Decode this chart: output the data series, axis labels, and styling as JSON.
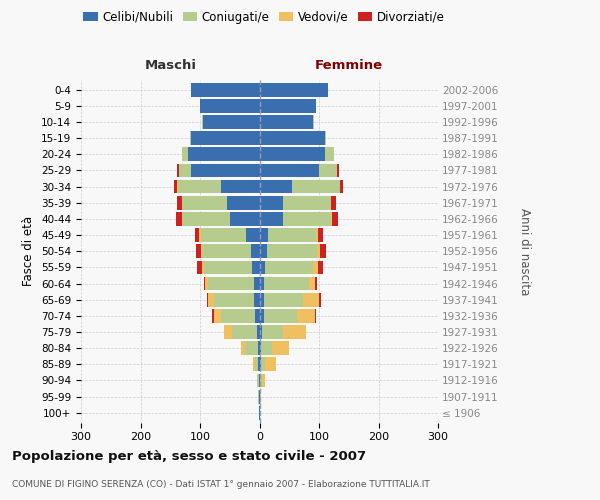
{
  "age_groups": [
    "100+",
    "95-99",
    "90-94",
    "85-89",
    "80-84",
    "75-79",
    "70-74",
    "65-69",
    "60-64",
    "55-59",
    "50-54",
    "45-49",
    "40-44",
    "35-39",
    "30-34",
    "25-29",
    "20-24",
    "15-19",
    "10-14",
    "5-9",
    "0-4"
  ],
  "birth_years": [
    "≤ 1906",
    "1907-1911",
    "1912-1916",
    "1917-1921",
    "1922-1926",
    "1927-1931",
    "1932-1936",
    "1937-1941",
    "1942-1946",
    "1947-1951",
    "1952-1956",
    "1957-1961",
    "1962-1966",
    "1967-1971",
    "1972-1976",
    "1977-1981",
    "1982-1986",
    "1987-1991",
    "1992-1996",
    "1997-2001",
    "2002-2006"
  ],
  "males_celibi": [
    1,
    1,
    1,
    2,
    3,
    5,
    8,
    10,
    10,
    12,
    15,
    22,
    50,
    55,
    65,
    115,
    120,
    115,
    95,
    100,
    115
  ],
  "males_coniugati": [
    0,
    1,
    3,
    6,
    22,
    42,
    57,
    67,
    77,
    82,
    82,
    77,
    80,
    75,
    72,
    20,
    10,
    1,
    1,
    0,
    0
  ],
  "males_vedovi": [
    0,
    0,
    1,
    3,
    6,
    12,
    12,
    10,
    5,
    3,
    2,
    2,
    1,
    1,
    1,
    1,
    0,
    0,
    0,
    0,
    0
  ],
  "males_divorziati": [
    0,
    0,
    0,
    0,
    0,
    0,
    2,
    2,
    2,
    8,
    8,
    8,
    10,
    8,
    5,
    2,
    1,
    0,
    0,
    0,
    0
  ],
  "females_nubili": [
    1,
    0,
    1,
    2,
    3,
    5,
    8,
    8,
    8,
    10,
    12,
    15,
    40,
    40,
    55,
    100,
    110,
    110,
    90,
    95,
    115
  ],
  "females_coniugate": [
    0,
    1,
    4,
    7,
    18,
    35,
    55,
    65,
    75,
    80,
    85,
    80,
    80,
    80,
    80,
    30,
    15,
    2,
    2,
    0,
    0
  ],
  "females_vedove": [
    0,
    1,
    5,
    18,
    28,
    38,
    30,
    27,
    10,
    8,
    5,
    3,
    2,
    1,
    1,
    1,
    0,
    0,
    0,
    0,
    0
  ],
  "females_divorziate": [
    0,
    0,
    0,
    0,
    0,
    0,
    2,
    3,
    3,
    8,
    10,
    8,
    10,
    8,
    5,
    2,
    1,
    0,
    0,
    0,
    0
  ],
  "colors_celibi": "#3a6faf",
  "colors_coniugati": "#b5cc8e",
  "colors_vedovi": "#f0c060",
  "colors_divorziati": "#cc2222",
  "xlim": 300,
  "title": "Popolazione per età, sesso e stato civile - 2007",
  "subtitle": "COMUNE DI FIGINO SERENZA (CO) - Dati ISTAT 1° gennaio 2007 - Elaborazione TUTTITALIA.IT",
  "ylabel_left": "Fasce di età",
  "ylabel_right": "Anni di nascita",
  "label_maschi": "Maschi",
  "label_femmine": "Femmine",
  "legend_labels": [
    "Celibi/Nubili",
    "Coniugati/e",
    "Vedovi/e",
    "Divorziati/e"
  ],
  "bg_color": "#f8f8f8",
  "grid_color": "#cccccc"
}
